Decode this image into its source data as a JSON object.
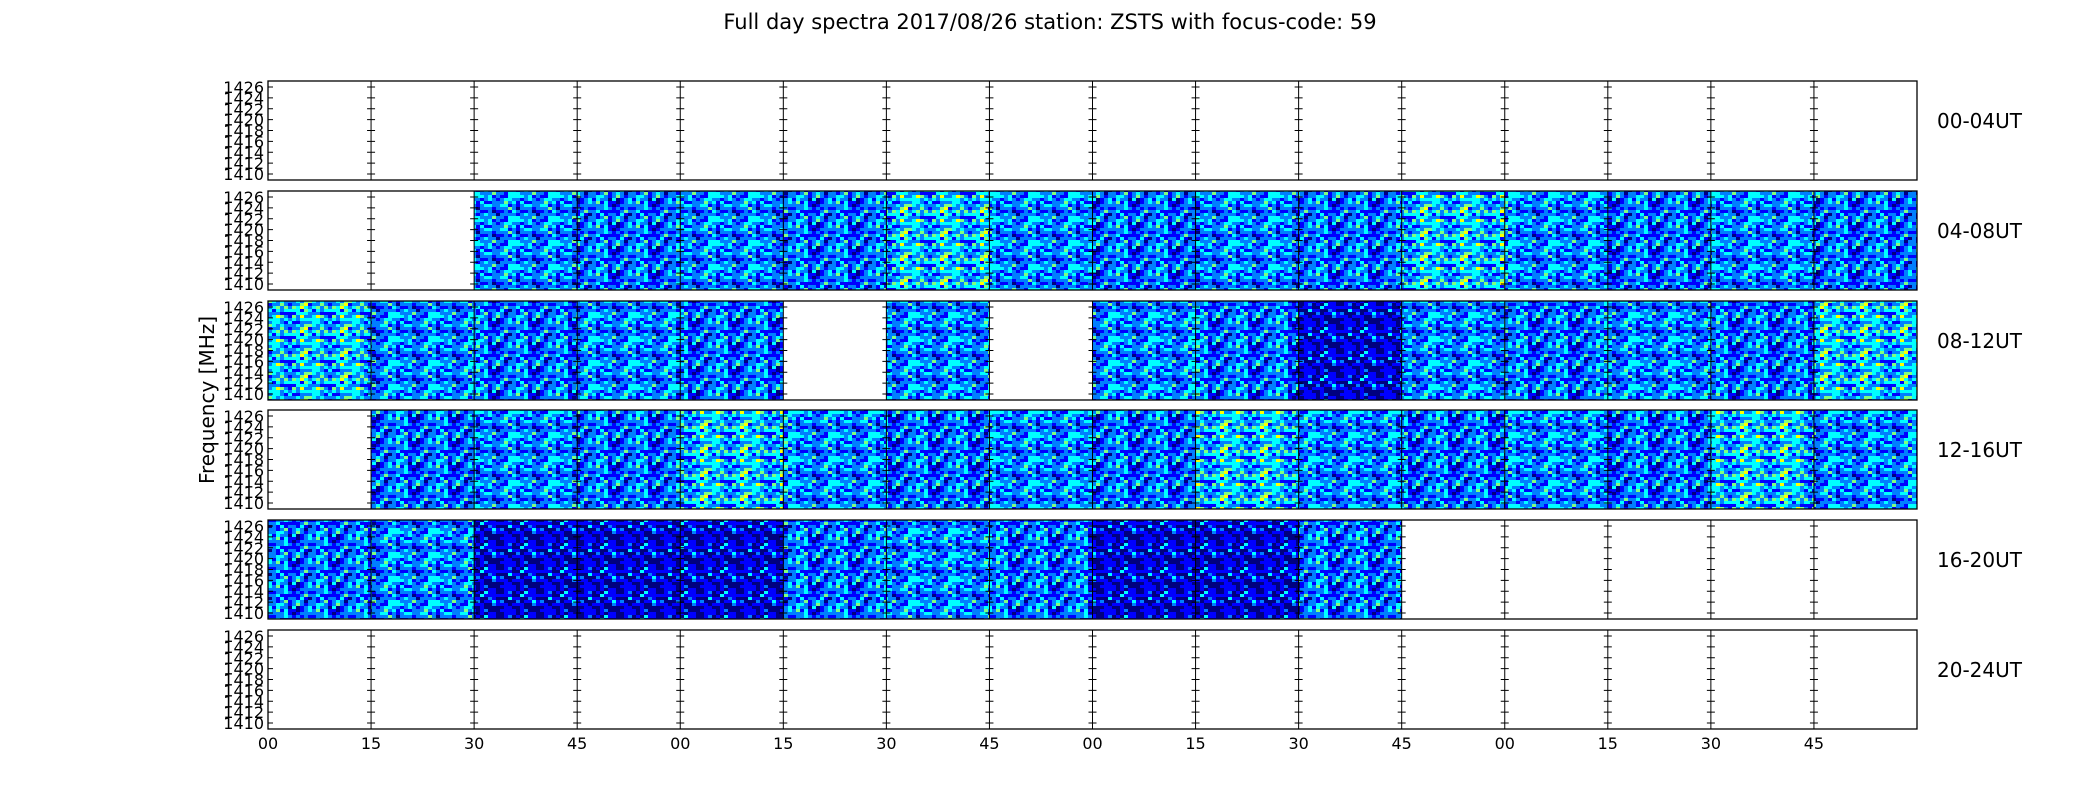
{
  "chart_data": {
    "type": "heatmap",
    "title": "Full day spectra 2017/08/26 station: ZSTS with focus-code: 59",
    "ylabel": "Frequency [MHz]",
    "xlabel": "",
    "ylim": [
      1410,
      1427
    ],
    "y_ticks": [
      "1426",
      "1424",
      "1422",
      "1420",
      "1418",
      "1416",
      "1414",
      "1412",
      "1410"
    ],
    "x_ticks": [
      "00",
      "15",
      "30",
      "45",
      "00",
      "15",
      "30",
      "45",
      "00",
      "15",
      "30",
      "45",
      "00",
      "15",
      "30",
      "45"
    ],
    "rows": [
      {
        "label": "00-04UT",
        "panels": [
          0,
          0,
          0,
          0,
          0,
          0,
          0,
          0,
          0,
          0,
          0,
          0,
          0,
          0,
          0,
          0
        ]
      },
      {
        "label": "04-08UT",
        "panels": [
          0,
          0,
          1,
          1,
          1,
          1,
          1,
          1,
          1,
          1,
          1,
          1,
          1,
          1,
          1,
          1
        ]
      },
      {
        "label": "08-12UT",
        "panels": [
          1,
          1,
          1,
          1,
          1,
          0,
          1,
          0,
          1,
          1,
          1,
          1,
          1,
          1,
          1,
          1
        ]
      },
      {
        "label": "12-16UT",
        "panels": [
          0,
          1,
          1,
          1,
          1,
          1,
          1,
          1,
          1,
          1,
          1,
          1,
          1,
          1,
          1,
          1
        ]
      },
      {
        "label": "16-20UT",
        "panels": [
          1,
          1,
          1,
          1,
          1,
          1,
          1,
          1,
          1,
          1,
          1,
          0,
          0,
          0,
          0,
          0
        ]
      },
      {
        "label": "20-24UT",
        "panels": [
          0,
          0,
          0,
          0,
          0,
          0,
          0,
          0,
          0,
          0,
          0,
          0,
          0,
          0,
          0,
          0
        ]
      }
    ],
    "colormap": [
      "#00007f",
      "#0000ff",
      "#007fff",
      "#00ffff",
      "#7fff7f",
      "#ffff00"
    ],
    "grid": false
  }
}
